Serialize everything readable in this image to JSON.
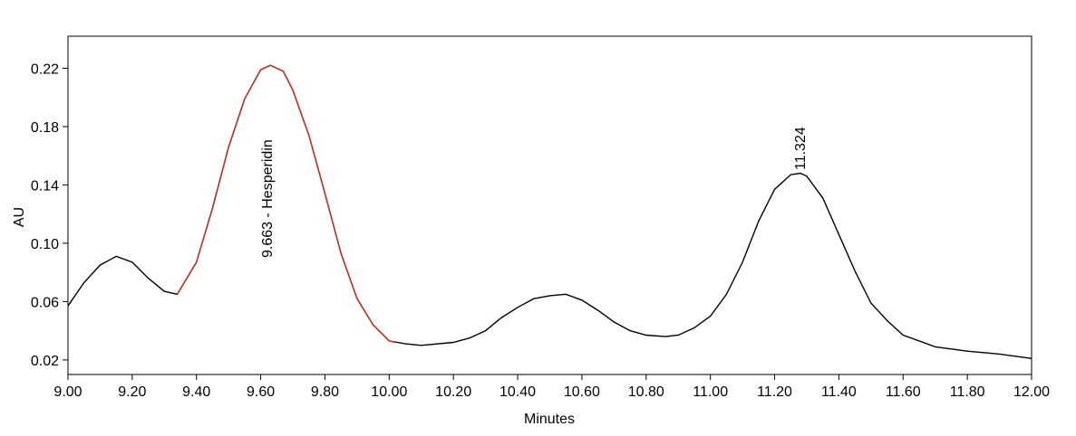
{
  "chart_data": {
    "type": "line",
    "xlabel": "Minutes",
    "ylabel": "AU",
    "annotations": [
      "9.663 - Hesperidin",
      "11.324"
    ],
    "xlim": [
      9.0,
      12.0
    ],
    "xticks": [
      {
        "value": 9.0,
        "label": "9.00"
      },
      {
        "value": 9.2,
        "label": "9.20"
      },
      {
        "value": 9.4,
        "label": "9.40"
      },
      {
        "value": 9.6,
        "label": "9.60"
      },
      {
        "value": 9.8,
        "label": "9.80"
      },
      {
        "value": 10.0,
        "label": "10.00"
      },
      {
        "value": 10.2,
        "label": "10.20"
      },
      {
        "value": 10.4,
        "label": "10.40"
      },
      {
        "value": 10.6,
        "label": "10.60"
      },
      {
        "value": 10.8,
        "label": "10.80"
      },
      {
        "value": 11.0,
        "label": "11.00"
      },
      {
        "value": 11.2,
        "label": "11.20"
      },
      {
        "value": 11.4,
        "label": "11.40"
      },
      {
        "value": 11.6,
        "label": "11.60"
      },
      {
        "value": 11.8,
        "label": "11.80"
      },
      {
        "value": 12.0,
        "label": "12.00"
      }
    ],
    "ylim": [
      0.01,
      0.242
    ],
    "yticks": [
      0.02,
      0.06,
      {
        "value": 0.1,
        "label": "0.10"
      },
      0.14,
      0.18,
      0.22
    ],
    "series": [
      {
        "color": "#000000",
        "x": [
          9.0,
          9.05,
          9.1,
          9.15,
          9.2,
          9.25,
          9.3,
          9.34,
          9.4,
          9.45,
          9.5,
          9.55,
          9.6,
          9.63,
          9.67,
          9.7,
          9.75,
          9.8,
          9.85,
          9.9,
          9.95,
          10.0,
          10.05,
          10.1,
          10.2,
          10.25,
          10.3,
          10.35,
          10.4,
          10.45,
          10.5,
          10.55,
          10.6,
          10.65,
          10.7,
          10.75,
          10.8,
          10.86,
          10.9,
          10.95,
          11.0,
          11.05,
          11.1,
          11.15,
          11.2,
          11.25,
          11.28,
          11.3,
          11.35,
          11.4,
          11.45,
          11.5,
          11.55,
          11.6,
          11.7,
          11.8,
          11.9,
          12.0
        ],
        "values": [
          0.057,
          0.073,
          0.085,
          0.091,
          0.087,
          0.076,
          0.067,
          0.065,
          0.087,
          0.124,
          0.166,
          0.199,
          0.219,
          0.222,
          0.218,
          0.205,
          0.174,
          0.134,
          0.093,
          0.062,
          0.044,
          0.033,
          0.031,
          0.03,
          0.032,
          0.035,
          0.04,
          0.049,
          0.056,
          0.062,
          0.064,
          0.065,
          0.061,
          0.054,
          0.046,
          0.04,
          0.037,
          0.036,
          0.037,
          0.042,
          0.05,
          0.065,
          0.087,
          0.115,
          0.137,
          0.147,
          0.148,
          0.146,
          0.131,
          0.106,
          0.081,
          0.059,
          0.047,
          0.037,
          0.029,
          0.026,
          0.024,
          0.021
        ]
      },
      {
        "color": "#c0392b",
        "x": [
          9.34,
          9.4,
          9.45,
          9.5,
          9.55,
          9.6,
          9.63,
          9.67,
          9.7,
          9.75,
          9.8,
          9.85,
          9.9,
          9.95,
          10.0,
          10.02
        ],
        "values": [
          0.065,
          0.087,
          0.124,
          0.166,
          0.199,
          0.219,
          0.222,
          0.218,
          0.205,
          0.174,
          0.134,
          0.093,
          0.062,
          0.044,
          0.033,
          0.032
        ]
      }
    ]
  }
}
